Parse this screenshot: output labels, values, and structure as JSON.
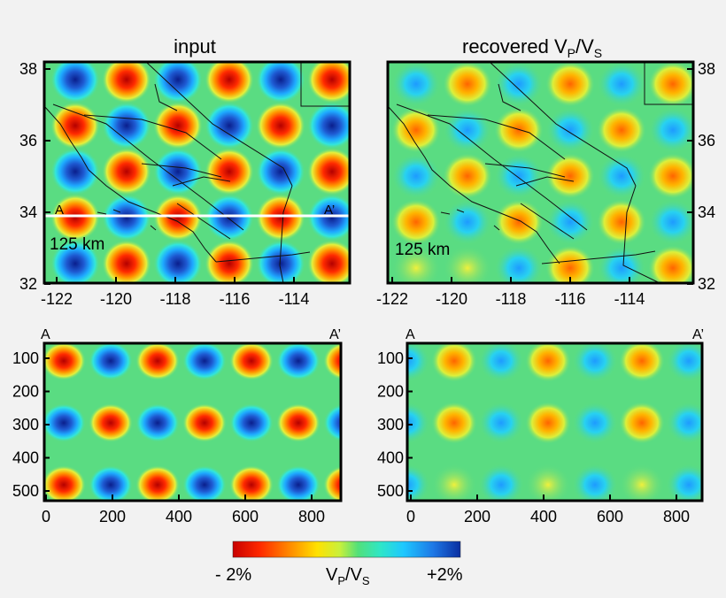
{
  "panels": {
    "input_map_title": "input",
    "recovered_map_title_main": "recovered V",
    "recovered_map_title_sub1": "P",
    "recovered_map_title_mid": "/V",
    "recovered_map_title_sub2": "S",
    "scale_text": "125 km",
    "profile_start": "A",
    "profile_end": "A’"
  },
  "map_axes": {
    "lat_ticks": [
      "38",
      "36",
      "34",
      "32"
    ],
    "lon_ticks": [
      "-122",
      "-120",
      "-118",
      "-116",
      "-114"
    ]
  },
  "section_axes": {
    "depth_ticks": [
      "100",
      "200",
      "300",
      "400",
      "500"
    ],
    "distance_ticks": [
      "0",
      "200",
      "400",
      "600",
      "800"
    ]
  },
  "colorbar": {
    "min_label": "- 2%",
    "max_label": "+2%",
    "label_main": "V",
    "label_sub1": "P",
    "label_mid": "/V",
    "label_sub2": "S",
    "colors": [
      "#c80000",
      "#ff2a00",
      "#ff8a00",
      "#ffe100",
      "#c8f03c",
      "#52e07a",
      "#2ee6c8",
      "#1ec8ff",
      "#1e78e6",
      "#0a2ea0"
    ]
  },
  "pattern_colors": {
    "background": "#5adc82",
    "positive": "#1435b4",
    "negative": "#d21400"
  }
}
